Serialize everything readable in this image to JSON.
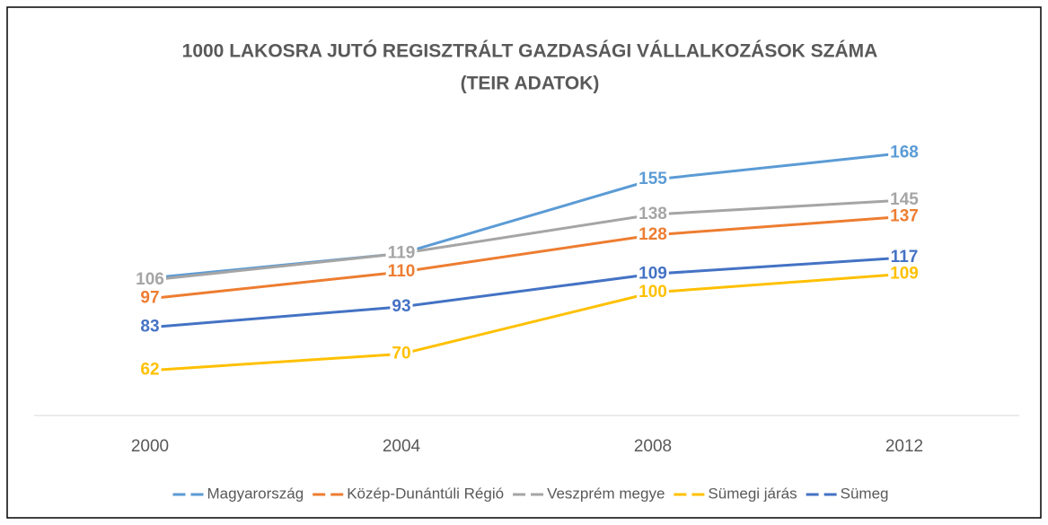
{
  "chart_data": {
    "type": "line",
    "title": [
      "1000 LAKOSRA JUTÓ REGISZTRÁLT GAZDASÁGI VÁLLALKOZÁSOK SZÁMA",
      "(TEIR ADATOK)"
    ],
    "categories": [
      "2000",
      "2004",
      "2008",
      "2012"
    ],
    "ylim": [
      40,
      180
    ],
    "series": [
      {
        "name": "Magyarország",
        "color": "#5b9bd5",
        "values": [
          107,
          119,
          155,
          168
        ]
      },
      {
        "name": "Közép-Dunántúli Régió",
        "color": "#ed7d31",
        "values": [
          97,
          110,
          128,
          137
        ]
      },
      {
        "name": "Veszprém megye",
        "color": "#a5a5a5",
        "values": [
          106,
          119,
          138,
          145
        ]
      },
      {
        "name": "Sümegi járás",
        "color": "#ffc000",
        "values": [
          62,
          70,
          100,
          109
        ]
      },
      {
        "name": "Sümeg",
        "color": "#4472c4",
        "values": [
          83,
          93,
          109,
          117
        ]
      }
    ]
  }
}
